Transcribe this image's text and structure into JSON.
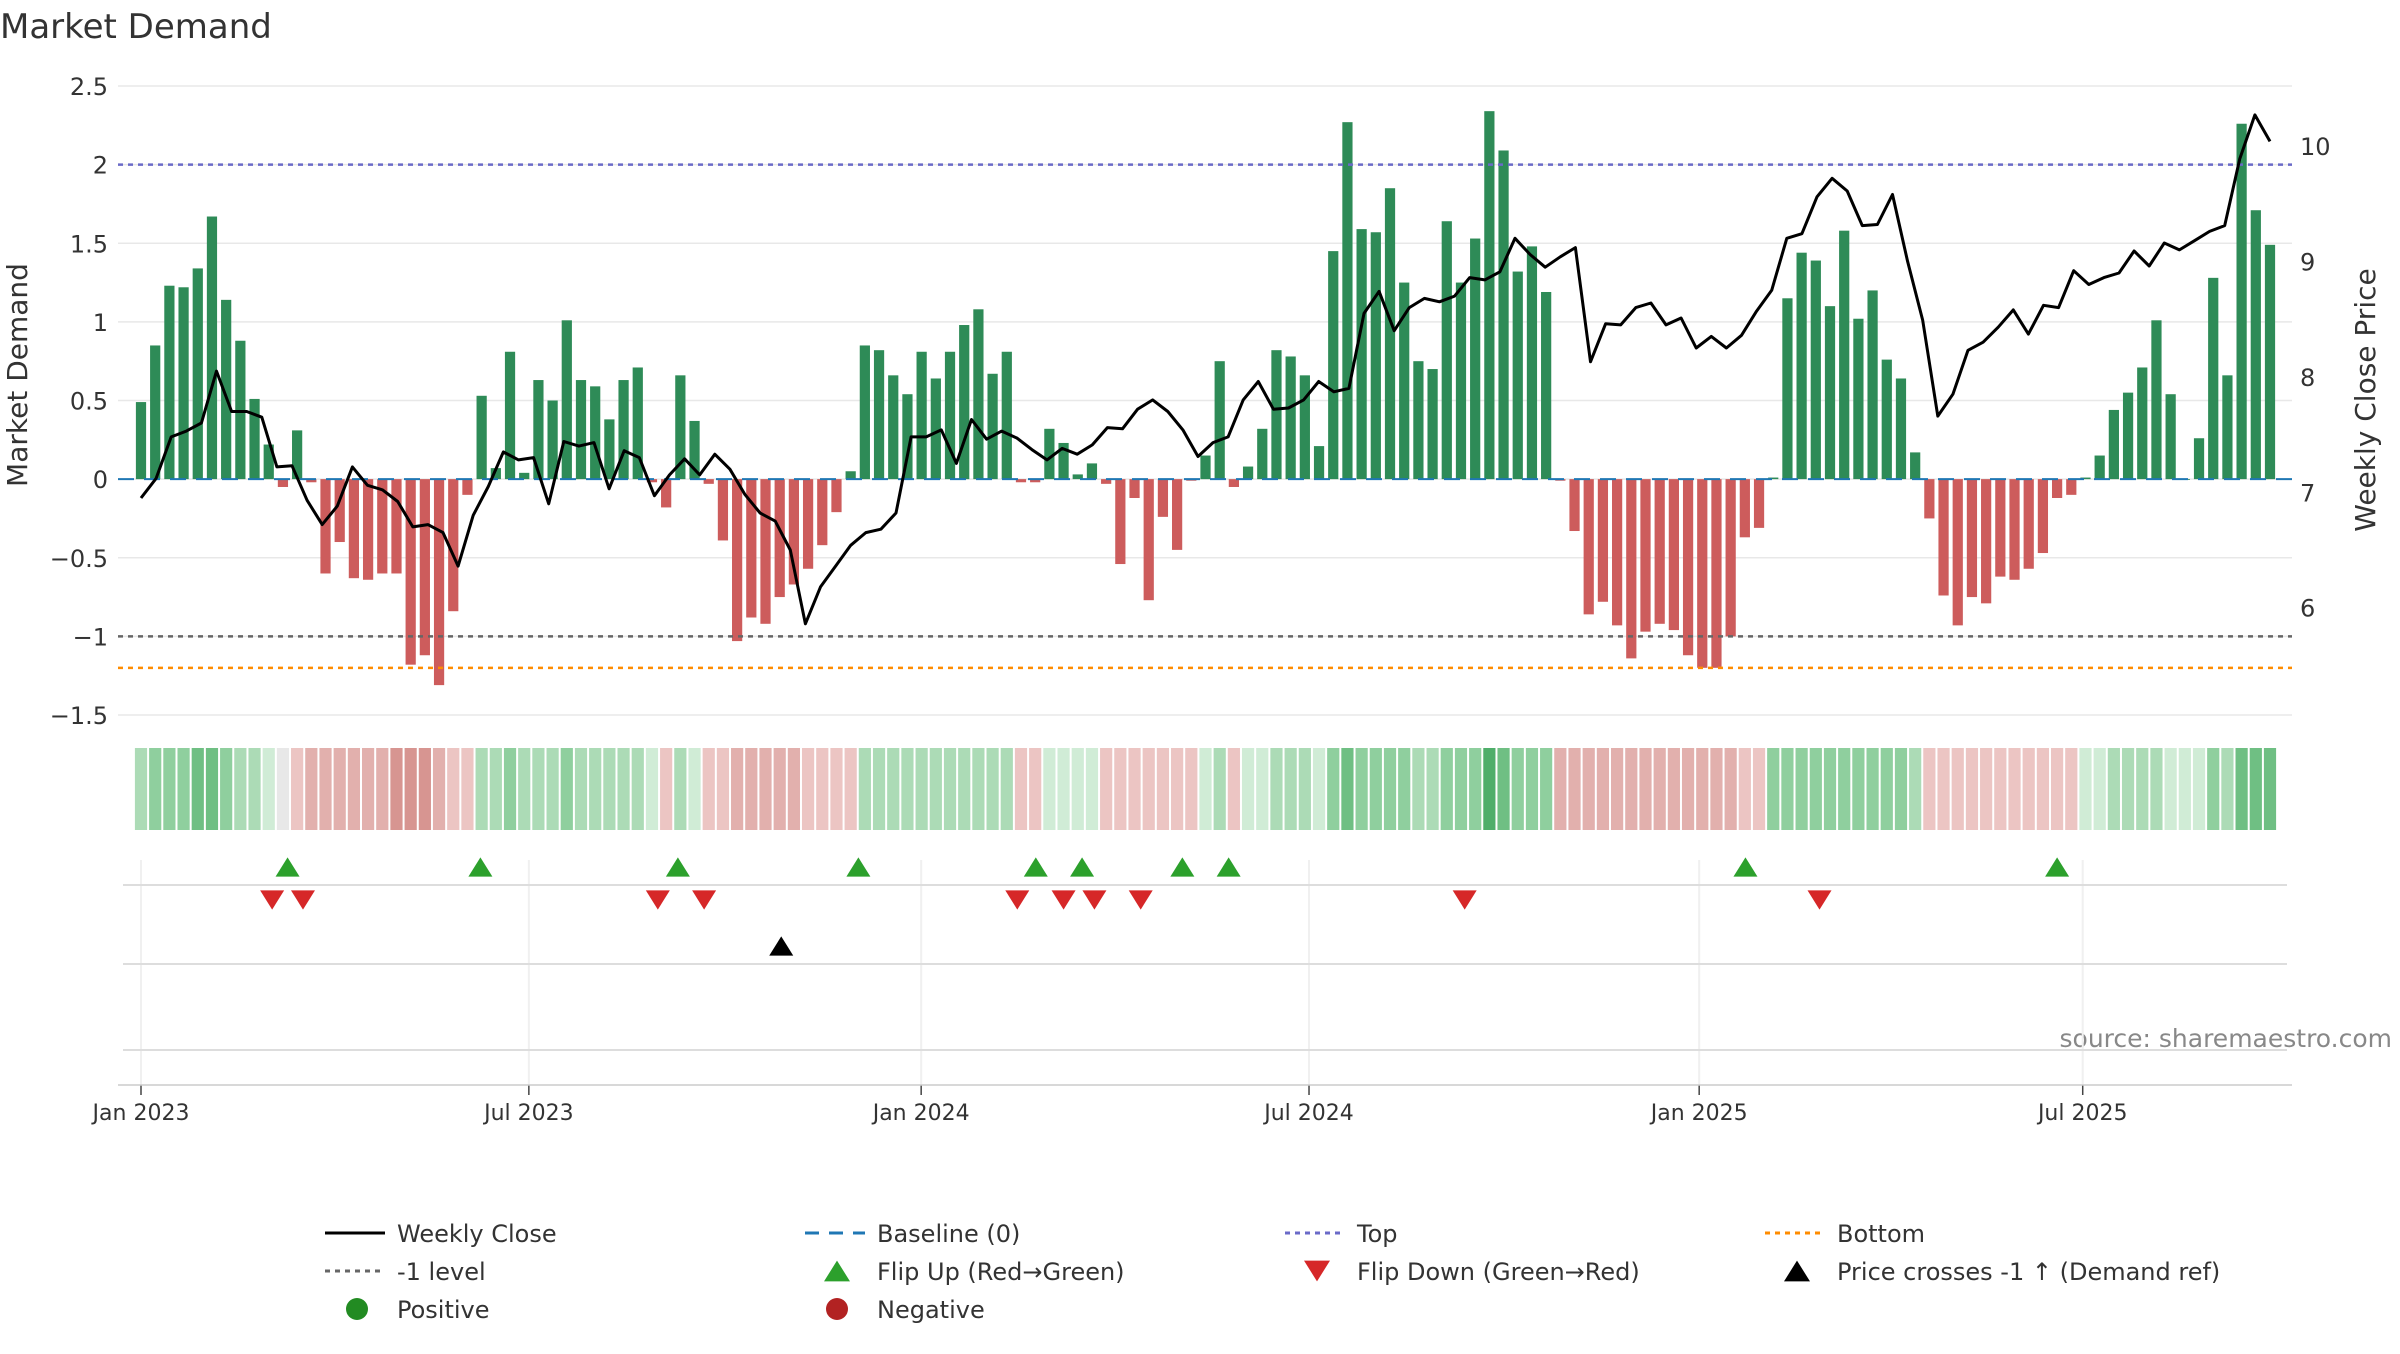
{
  "chart_data": {
    "type": "bar",
    "title": "Market Demand",
    "ylabel": "Market Demand",
    "y2label": "Weekly Close Price",
    "source": "source: sharemaestro.com",
    "ylim": [
      -1.5,
      2.5
    ],
    "y2lim": [
      5.07,
      10.52
    ],
    "yticks": [
      -1.5,
      -1,
      -0.5,
      0,
      0.5,
      1,
      1.5,
      2,
      2.5
    ],
    "ytick_labels": [
      "−1.5",
      "−1",
      "−0.5",
      "0",
      "0.5",
      "1",
      "1.5",
      "2",
      "2.5"
    ],
    "y2ticks": [
      6,
      7,
      8,
      9,
      10
    ],
    "y2tick_labels": [
      "6",
      "7",
      "8",
      "9",
      "10"
    ],
    "x_week_range": [
      0,
      138
    ],
    "xticks_week": [
      0,
      25.14,
      50.57,
      75.71,
      101,
      125.86
    ],
    "xtick_labels": [
      "Jan 2023",
      "Jul 2023",
      "Jan 2024",
      "Jul 2024",
      "Jan 2025",
      "Jul 2025"
    ],
    "levels": {
      "top": 2.0,
      "bottom": -1.2,
      "minus_one": -1.0,
      "baseline": 0
    },
    "colors": {
      "positive_bar": "#2e8b57",
      "negative_bar": "#cd5c5c",
      "price_line": "#000000",
      "baseline": "#1f77b4",
      "top": "#6a6ac8",
      "bottom": "#ff8c00",
      "minus_one": "#666666",
      "flip_up": "#2ca02c",
      "flip_down": "#d62728",
      "price_cross": "#000000",
      "positive_dot": "#228b22",
      "negative_dot": "#b22222"
    },
    "demand": [
      0.49,
      0.85,
      1.23,
      1.22,
      1.34,
      1.67,
      1.14,
      0.88,
      0.51,
      0.22,
      -0.05,
      0.31,
      -0.02,
      -0.6,
      -0.4,
      -0.63,
      -0.64,
      -0.6,
      -0.6,
      -1.18,
      -1.12,
      -1.31,
      -0.84,
      -0.1,
      0.53,
      0.07,
      0.81,
      0.04,
      0.63,
      0.5,
      1.01,
      0.63,
      0.59,
      0.38,
      0.63,
      0.71,
      -0.02,
      -0.18,
      0.66,
      0.37,
      -0.03,
      -0.39,
      -1.03,
      -0.88,
      -0.92,
      -0.75,
      -0.67,
      -0.57,
      -0.42,
      -0.21,
      0.05,
      0.85,
      0.82,
      0.66,
      0.54,
      0.81,
      0.64,
      0.81,
      0.98,
      1.08,
      0.67,
      0.81,
      -0.02,
      -0.02,
      0.32,
      0.23,
      0.03,
      0.1,
      -0.03,
      -0.54,
      -0.12,
      -0.77,
      -0.24,
      -0.45,
      -0.01,
      0.15,
      0.75,
      -0.05,
      0.08,
      0.32,
      0.82,
      0.78,
      0.66,
      0.21,
      1.45,
      2.27,
      1.59,
      1.57,
      1.85,
      1.25,
      0.75,
      0.7,
      1.64,
      1.25,
      1.53,
      2.34,
      2.09,
      1.32,
      1.48,
      1.19,
      -0.01,
      -0.33,
      -0.86,
      -0.78,
      -0.93,
      -1.14,
      -0.97,
      -0.92,
      -0.96,
      -1.12,
      -1.2,
      -1.2,
      -1.0,
      -0.37,
      -0.31,
      0.01,
      1.15,
      1.44,
      1.39,
      1.1,
      1.58,
      1.02,
      1.2,
      0.76,
      0.64,
      0.17,
      -0.25,
      -0.74,
      -0.93,
      -0.75,
      -0.79,
      -0.62,
      -0.64,
      -0.57,
      -0.47,
      -0.12,
      -0.1,
      0.01,
      0.15,
      0.44,
      0.55,
      0.71,
      1.01,
      0.54,
      0.0,
      0.26,
      1.28,
      0.66,
      2.26,
      1.71,
      1.49
    ],
    "price": [
      6.95,
      7.12,
      7.48,
      7.53,
      7.6,
      8.05,
      7.7,
      7.7,
      7.65,
      7.22,
      7.23,
      6.93,
      6.72,
      6.88,
      7.22,
      7.06,
      7.02,
      6.92,
      6.7,
      6.72,
      6.65,
      6.36,
      6.8,
      7.05,
      7.35,
      7.28,
      7.3,
      6.9,
      7.44,
      7.4,
      7.43,
      7.03,
      7.36,
      7.3,
      6.97,
      7.15,
      7.29,
      7.15,
      7.33,
      7.2,
      6.98,
      6.82,
      6.75,
      6.5,
      5.86,
      6.18,
      6.36,
      6.54,
      6.65,
      6.68,
      6.82,
      7.48,
      7.48,
      7.54,
      7.25,
      7.63,
      7.46,
      7.53,
      7.47,
      7.37,
      7.28,
      7.38,
      7.33,
      7.41,
      7.56,
      7.55,
      7.72,
      7.8,
      7.7,
      7.54,
      7.31,
      7.43,
      7.48,
      7.8,
      7.96,
      7.72,
      7.73,
      7.8,
      7.96,
      7.87,
      7.9,
      8.55,
      8.74,
      8.4,
      8.6,
      8.68,
      8.65,
      8.7,
      8.86,
      8.84,
      8.91,
      9.2,
      9.06,
      8.95,
      9.04,
      9.12,
      8.13,
      8.46,
      8.45,
      8.6,
      8.64,
      8.45,
      8.51,
      8.25,
      8.35,
      8.25,
      8.36,
      8.57,
      8.75,
      9.2,
      9.24,
      9.56,
      9.72,
      9.61,
      9.31,
      9.32,
      9.58,
      9.0,
      8.49,
      7.66,
      7.85,
      8.23,
      8.3,
      8.43,
      8.58,
      8.37,
      8.62,
      8.6,
      8.92,
      8.8,
      8.86,
      8.9,
      9.09,
      8.96,
      9.16,
      9.1,
      9.18,
      9.26,
      9.31,
      9.89,
      10.27,
      10.04
    ],
    "color_strip": [
      2,
      3,
      3,
      3,
      4,
      4,
      3,
      2,
      2,
      1,
      0,
      -1,
      -2,
      -2,
      -2,
      -2,
      -2,
      -2,
      -3,
      -3,
      -3,
      -2,
      -1,
      -1,
      2,
      2,
      3,
      2,
      2,
      2,
      3,
      2,
      2,
      2,
      2,
      2,
      1,
      -1,
      2,
      1,
      -1,
      -1,
      -2,
      -2,
      -2,
      -2,
      -2,
      -1,
      -1,
      -1,
      -1,
      2,
      2,
      2,
      2,
      2,
      2,
      2,
      2,
      2,
      2,
      2,
      -1,
      -1,
      1,
      1,
      1,
      1,
      -1,
      -1,
      -1,
      -1,
      -1,
      -1,
      -1,
      1,
      2,
      -1,
      1,
      1,
      2,
      2,
      2,
      1,
      3,
      4,
      3,
      3,
      3,
      3,
      2,
      2,
      3,
      3,
      3,
      5,
      4,
      3,
      3,
      3,
      -2,
      -2,
      -2,
      -2,
      -2,
      -2,
      -2,
      -2,
      -2,
      -2,
      -2,
      -2,
      -2,
      -1,
      -1,
      3,
      3,
      3,
      3,
      3,
      3,
      3,
      3,
      3,
      3,
      2,
      -1,
      -1,
      -1,
      -1,
      -1,
      -1,
      -1,
      -1,
      -1,
      -1,
      -1,
      1,
      1,
      2,
      2,
      2,
      2,
      1,
      1,
      1,
      3,
      2,
      4,
      4,
      4
    ],
    "flip_up_weeks": [
      9.5,
      22.0,
      34.8,
      46.5,
      58.0,
      61.0,
      67.5,
      70.5,
      104.0,
      124.2
    ],
    "flip_down_weeks": [
      8.5,
      10.5,
      33.5,
      36.5,
      56.8,
      59.8,
      61.8,
      64.8,
      85.8,
      108.8
    ],
    "price_cross_weeks": [
      41.5
    ]
  },
  "legend": {
    "items": [
      {
        "key": "weekly_close",
        "label": "Weekly Close"
      },
      {
        "key": "baseline",
        "label": "Baseline (0)"
      },
      {
        "key": "top",
        "label": "Top"
      },
      {
        "key": "bottom",
        "label": "Bottom"
      },
      {
        "key": "minus_one",
        "label": "-1 level"
      },
      {
        "key": "flip_up",
        "label": "Flip Up (Red→Green)"
      },
      {
        "key": "flip_down",
        "label": "Flip Down (Green→Red)"
      },
      {
        "key": "price_cross",
        "label": "Price crosses -1 ↑ (Demand ref)"
      },
      {
        "key": "positive",
        "label": "Positive"
      },
      {
        "key": "negative",
        "label": "Negative"
      }
    ]
  }
}
